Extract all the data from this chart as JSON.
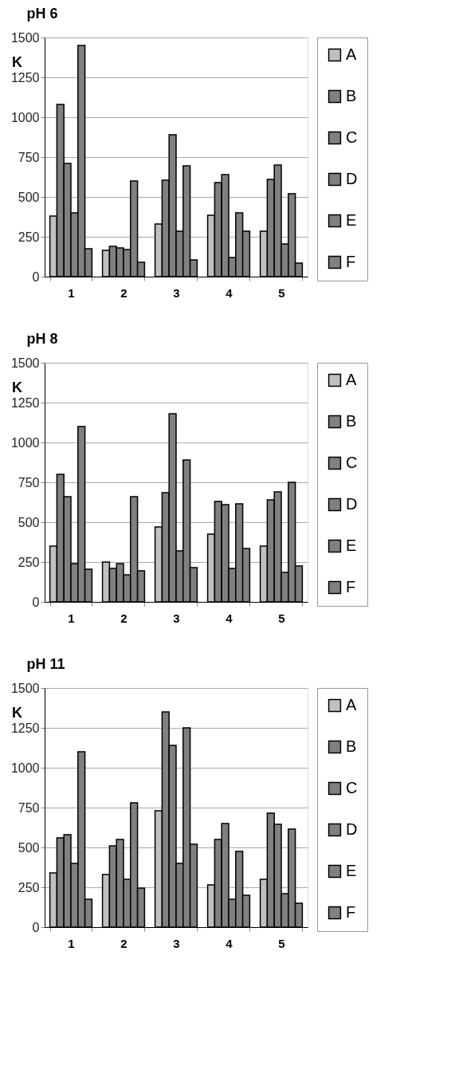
{
  "chart_data": [
    {
      "type": "bar",
      "title": "pH 6",
      "ylabel": "K",
      "categories": [
        "1",
        "2",
        "3",
        "4",
        "5"
      ],
      "ylim": [
        0,
        1500
      ],
      "yticks": [
        0,
        250,
        500,
        750,
        1000,
        1250,
        1500
      ],
      "grid": "y",
      "legend": "right",
      "series": [
        {
          "name": "A",
          "color": "#c0c0c0",
          "values": [
            380,
            165,
            330,
            385,
            285
          ]
        },
        {
          "name": "B",
          "color": "#808080",
          "values": [
            1080,
            190,
            605,
            590,
            610
          ]
        },
        {
          "name": "C",
          "color": "#808080",
          "values": [
            710,
            180,
            890,
            640,
            700
          ]
        },
        {
          "name": "D",
          "color": "#808080",
          "values": [
            400,
            170,
            285,
            120,
            205
          ]
        },
        {
          "name": "E",
          "color": "#808080",
          "values": [
            1450,
            600,
            695,
            400,
            520
          ]
        },
        {
          "name": "F",
          "color": "#808080",
          "values": [
            175,
            90,
            105,
            285,
            85
          ]
        }
      ]
    },
    {
      "type": "bar",
      "title": "pH 8",
      "ylabel": "K",
      "categories": [
        "1",
        "2",
        "3",
        "4",
        "5"
      ],
      "ylim": [
        0,
        1500
      ],
      "yticks": [
        0,
        250,
        500,
        750,
        1000,
        1250,
        1500
      ],
      "grid": "y",
      "legend": "right",
      "series": [
        {
          "name": "A",
          "color": "#c0c0c0",
          "values": [
            350,
            250,
            470,
            425,
            350
          ]
        },
        {
          "name": "B",
          "color": "#808080",
          "values": [
            800,
            210,
            685,
            630,
            640
          ]
        },
        {
          "name": "C",
          "color": "#808080",
          "values": [
            660,
            240,
            1180,
            610,
            690
          ]
        },
        {
          "name": "D",
          "color": "#808080",
          "values": [
            240,
            170,
            320,
            210,
            185
          ]
        },
        {
          "name": "E",
          "color": "#808080",
          "values": [
            1100,
            660,
            890,
            615,
            750
          ]
        },
        {
          "name": "F",
          "color": "#808080",
          "values": [
            205,
            195,
            215,
            335,
            225
          ]
        }
      ]
    },
    {
      "type": "bar",
      "title": "pH 11",
      "ylabel": "K",
      "categories": [
        "1",
        "2",
        "3",
        "4",
        "5"
      ],
      "ylim": [
        0,
        1500
      ],
      "yticks": [
        0,
        250,
        500,
        750,
        1000,
        1250,
        1500
      ],
      "grid": "y",
      "legend": "right",
      "series": [
        {
          "name": "A",
          "color": "#c0c0c0",
          "values": [
            340,
            330,
            730,
            265,
            300
          ]
        },
        {
          "name": "B",
          "color": "#808080",
          "values": [
            560,
            510,
            1350,
            550,
            715
          ]
        },
        {
          "name": "C",
          "color": "#808080",
          "values": [
            580,
            550,
            1140,
            650,
            645
          ]
        },
        {
          "name": "D",
          "color": "#808080",
          "values": [
            400,
            300,
            400,
            175,
            210
          ]
        },
        {
          "name": "E",
          "color": "#808080",
          "values": [
            1100,
            780,
            1250,
            475,
            615
          ]
        },
        {
          "name": "F",
          "color": "#808080",
          "values": [
            175,
            245,
            520,
            200,
            150
          ]
        }
      ]
    }
  ]
}
